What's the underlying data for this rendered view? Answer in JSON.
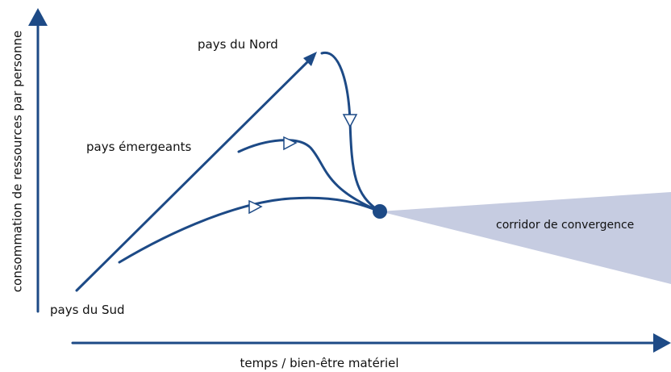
{
  "labels": {
    "y_axis": "consommation de ressources par personne",
    "x_axis": "temps / bien-être matériel",
    "north": "pays du Nord",
    "emerging": "pays émergeants",
    "south": "pays du Sud",
    "corridor": "corridor de convergence"
  }
}
